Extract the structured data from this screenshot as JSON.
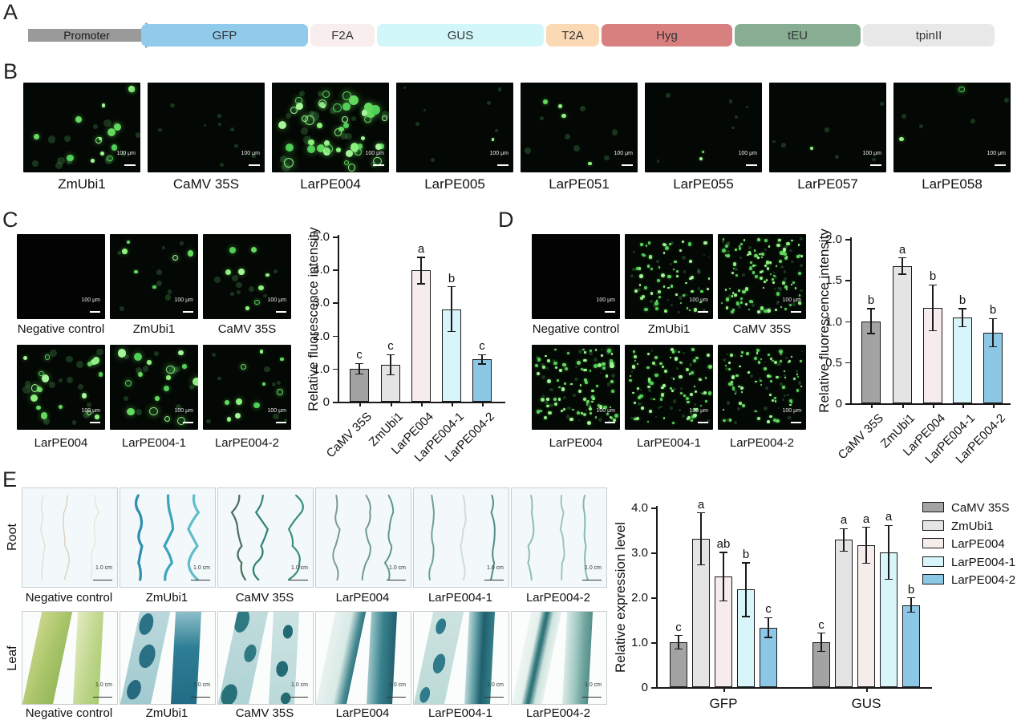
{
  "panels": {
    "A": {
      "label": "A",
      "promoter_label": "Promoter",
      "segments": [
        {
          "label": "GFP",
          "color": "#90CBEB"
        },
        {
          "label": "F2A",
          "color": "#F8EEEE"
        },
        {
          "label": "GUS",
          "color": "#D2F7FA"
        },
        {
          "label": "T2A",
          "color": "#FAD9B4"
        },
        {
          "label": "Hyg",
          "color": "#D88080"
        },
        {
          "label": "tEU",
          "color": "#87AE92"
        },
        {
          "label": "tpinII",
          "color": "#E8E8E8"
        }
      ]
    },
    "B": {
      "label": "B",
      "scale_bar": "100 μm",
      "images": [
        {
          "label": "ZmUbi1",
          "bright": 14,
          "dim": 12,
          "rmin": 2,
          "rmax": 5
        },
        {
          "label": "CaMV 35S",
          "bright": 0,
          "dim": 9,
          "rmin": 1.5,
          "rmax": 3
        },
        {
          "label": "LarPE004",
          "bright": 46,
          "dim": 18,
          "rmin": 2.5,
          "rmax": 6
        },
        {
          "label": "LarPE005",
          "bright": 1,
          "dim": 7,
          "rmin": 1.5,
          "rmax": 3
        },
        {
          "label": "LarPE051",
          "bright": 4,
          "dim": 7,
          "rmin": 2,
          "rmax": 4
        },
        {
          "label": "LarPE055",
          "bright": 2,
          "dim": 6,
          "rmin": 1.5,
          "rmax": 3
        },
        {
          "label": "LarPE057",
          "bright": 1,
          "dim": 6,
          "rmin": 1.5,
          "rmax": 3
        },
        {
          "label": "LarPE058",
          "bright": 2,
          "dim": 4,
          "rmin": 2,
          "rmax": 4
        }
      ]
    },
    "C": {
      "label": "C",
      "scale_bar": "100 μm",
      "images": [
        {
          "label": "Negative control",
          "bright": 0,
          "dim": 0,
          "rmin": 2,
          "rmax": 4
        },
        {
          "label": "ZmUbi1",
          "bright": 6,
          "dim": 8,
          "rmin": 2,
          "rmax": 4
        },
        {
          "label": "CaMV 35S",
          "bright": 8,
          "dim": 8,
          "rmin": 2,
          "rmax": 4
        },
        {
          "label": "LarPE004",
          "bright": 18,
          "dim": 14,
          "rmin": 2.5,
          "rmax": 5
        },
        {
          "label": "LarPE004-1",
          "bright": 16,
          "dim": 10,
          "rmin": 2.5,
          "rmax": 5.5
        },
        {
          "label": "LarPE004-2",
          "bright": 10,
          "dim": 8,
          "rmin": 2,
          "rmax": 4
        }
      ]
    },
    "D": {
      "label": "D",
      "scale_bar": "100 μm",
      "images": [
        {
          "label": "Negative control",
          "bright": 0,
          "dim": 0,
          "rmin": 1,
          "rmax": 2.4
        },
        {
          "label": "ZmUbi1",
          "bright": 60,
          "dim": 25,
          "rmin": 1,
          "rmax": 2.4
        },
        {
          "label": "CaMV 35S",
          "bright": 105,
          "dim": 40,
          "rmin": 1,
          "rmax": 2.4
        },
        {
          "label": "LarPE004",
          "bright": 90,
          "dim": 35,
          "rmin": 1,
          "rmax": 2.6
        },
        {
          "label": "LarPE004-1",
          "bright": 80,
          "dim": 35,
          "rmin": 1,
          "rmax": 2.4
        },
        {
          "label": "LarPE004-2",
          "bright": 70,
          "dim": 30,
          "rmin": 1,
          "rmax": 2.4
        }
      ]
    },
    "E": {
      "label": "E",
      "row_labels": [
        "Root",
        "Leaf"
      ],
      "scale_bar": "1.0 cm",
      "root_images": [
        {
          "label": "Negative control",
          "root_colors": [
            "#e3dfcf",
            "#d8d2bd",
            "#e7e5da"
          ],
          "stroke": 1.4,
          "amp": 5
        },
        {
          "label": "ZmUbi1",
          "root_colors": [
            "#2e8fb0",
            "#3aa4bc",
            "#62bcca"
          ],
          "stroke": 3.2,
          "amp": 7
        },
        {
          "label": "CaMV 35S",
          "root_colors": [
            "#4a6f5e",
            "#2f8278",
            "#3a8d80"
          ],
          "stroke": 2.2,
          "amp": 10
        },
        {
          "label": "LarPE004",
          "root_colors": [
            "#7c9b97",
            "#6e9b95",
            "#60978f"
          ],
          "stroke": 2.0,
          "amp": 6
        },
        {
          "label": "LarPE004-1",
          "root_colors": [
            "#6fa09a",
            "#cdddda",
            "#4f8d86"
          ],
          "stroke": 2.0,
          "amp": 4
        },
        {
          "label": "LarPE004-2",
          "root_colors": [
            "#8fbdb6",
            "#9cc5be",
            "#86b8b0"
          ],
          "stroke": 2.0,
          "amp": 4
        }
      ],
      "leaf_images": [
        {
          "label": "Negative control",
          "style": "green"
        },
        {
          "label": "ZmUbi1",
          "style": "heavy"
        },
        {
          "label": "CaMV 35S",
          "style": "spotted"
        },
        {
          "label": "LarPE004",
          "style": "half"
        },
        {
          "label": "LarPE004-1",
          "style": "streaked"
        },
        {
          "label": "LarPE004-2",
          "style": "center"
        }
      ]
    }
  },
  "chart_data": [
    {
      "type": "bar",
      "panel": "C",
      "ylabel": "Relative fluorescence intensity",
      "ylim": [
        0,
        5
      ],
      "yticks": [
        0,
        1,
        2,
        3,
        4,
        5
      ],
      "ytick_labels": [
        "0",
        "1.0",
        "2.0",
        "3.0",
        "4.0",
        "5.0"
      ],
      "categories": [
        "CaMV 35S",
        "ZmUbi1",
        "LarPE004",
        "LarPE004-1",
        "LarPE004-2"
      ],
      "values": [
        1.0,
        1.12,
        3.97,
        2.8,
        1.28
      ],
      "errors": [
        0.16,
        0.3,
        0.4,
        0.68,
        0.14
      ],
      "sig_letters": [
        "c",
        "c",
        "a",
        "b",
        "c"
      ],
      "bar_colors": [
        "#A3A3A3",
        "#E4E4E4",
        "#F7ECEC",
        "#D8F6FA",
        "#8DC7E6"
      ],
      "grid": false
    },
    {
      "type": "bar",
      "panel": "D",
      "ylabel": "Relative fluorescence intensity",
      "ylim": [
        0,
        2
      ],
      "yticks": [
        0,
        0.5,
        1,
        1.5,
        2
      ],
      "ytick_labels": [
        "0",
        "0.5",
        "1.0",
        "1.5",
        "2.0"
      ],
      "categories": [
        "CaMV 35S",
        "ZmUbi1",
        "LarPE004",
        "LarPE004-1",
        "LarPE004-2"
      ],
      "values": [
        1.0,
        1.67,
        1.16,
        1.04,
        0.86
      ],
      "errors": [
        0.15,
        0.1,
        0.28,
        0.11,
        0.17
      ],
      "sig_letters": [
        "b",
        "a",
        "b",
        "b",
        "b"
      ],
      "bar_colors": [
        "#A3A3A3",
        "#E4E4E4",
        "#F7ECEC",
        "#D8F6FA",
        "#8DC7E6"
      ],
      "grid": false
    },
    {
      "type": "grouped_bar",
      "panel": "E",
      "ylabel": "Relative expression level",
      "ylim": [
        0,
        4
      ],
      "yticks": [
        0,
        1,
        2,
        3,
        4
      ],
      "ytick_labels": [
        "0",
        "1.0",
        "2.0",
        "3.0",
        "4.0"
      ],
      "groups": [
        "GFP",
        "GUS"
      ],
      "series": [
        {
          "name": "CaMV 35S",
          "color": "#A3A3A3",
          "values": [
            1.0,
            1.0
          ],
          "errors": [
            0.15,
            0.2
          ],
          "sig_letters": [
            "c",
            "c"
          ]
        },
        {
          "name": "ZmUbi1",
          "color": "#E4E4E4",
          "values": [
            3.3,
            3.28
          ],
          "errors": [
            0.58,
            0.25
          ],
          "sig_letters": [
            "a",
            "a"
          ]
        },
        {
          "name": "LarPE004",
          "color": "#F7ECEC",
          "values": [
            2.46,
            3.16
          ],
          "errors": [
            0.54,
            0.4
          ],
          "sig_letters": [
            "ab",
            "a"
          ]
        },
        {
          "name": "LarPE004-1",
          "color": "#D8F6FA",
          "values": [
            2.17,
            3.0
          ],
          "errors": [
            0.6,
            0.6
          ],
          "sig_letters": [
            "b",
            "a"
          ]
        },
        {
          "name": "LarPE004-2",
          "color": "#8DC7E6",
          "values": [
            1.33,
            1.83
          ],
          "errors": [
            0.22,
            0.16
          ],
          "sig_letters": [
            "c",
            "b"
          ]
        }
      ],
      "legend_position": "right",
      "grid": false
    }
  ]
}
